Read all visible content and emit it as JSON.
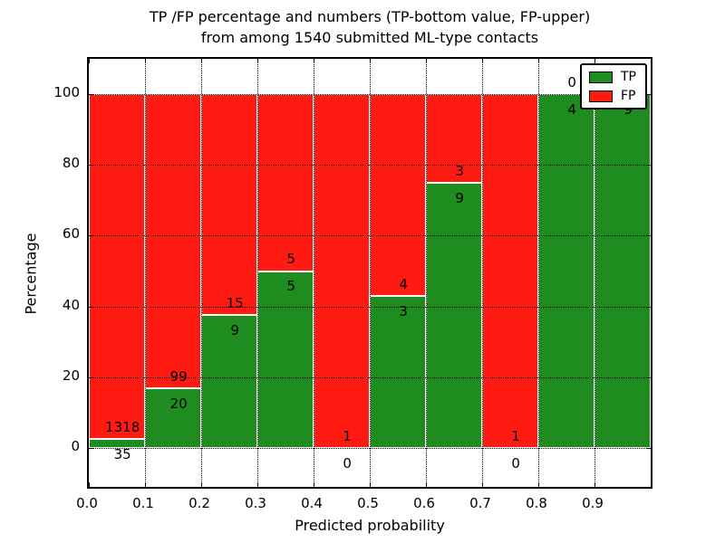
{
  "title": {
    "line1": "TP /FP percentage and numbers (TP-bottom value, FP-upper)",
    "line2": "from among 1540 submitted ML-type contacts"
  },
  "axes": {
    "xlabel": "Predicted probability",
    "ylabel": "Percentage",
    "x_tick_labels": [
      "0.0",
      "0.1",
      "0.2",
      "0.3",
      "0.4",
      "0.5",
      "0.6",
      "0.7",
      "0.8",
      "0.9"
    ],
    "y_tick_labels": [
      "0",
      "20",
      "40",
      "60",
      "80",
      "100"
    ]
  },
  "legend": {
    "items": [
      {
        "label": "TP",
        "color": "#1e8c1e"
      },
      {
        "label": "FP",
        "color": "#ff1a12"
      }
    ]
  },
  "colors": {
    "tp": "#1e8c1e",
    "fp": "#ff1a12",
    "bar_edge": "#ffffff",
    "grid": "#000000",
    "text": "#000000",
    "background": "#ffffff"
  },
  "chart_data": {
    "type": "bar",
    "stacked": true,
    "orientation": "vertical",
    "title": "TP /FP percentage and numbers (TP-bottom value, FP-upper) from among 1540 submitted ML-type contacts",
    "xlabel": "Predicted probability",
    "ylabel": "Percentage",
    "xlim": [
      0.0,
      1.0
    ],
    "ylim": [
      -11,
      110
    ],
    "x_ticks": [
      0.0,
      0.1,
      0.2,
      0.3,
      0.4,
      0.5,
      0.6,
      0.7,
      0.8,
      0.9
    ],
    "y_ticks": [
      0,
      20,
      40,
      60,
      80,
      100
    ],
    "grid": true,
    "legend_position": "upper right",
    "total_contacts": 1540,
    "bin_width": 0.1,
    "bins": [
      {
        "x0": 0.0,
        "x1": 0.1,
        "tp": 35,
        "fp": 1318,
        "tp_pct": 2.6,
        "fp_pct": 97.4,
        "tp_label": "35",
        "fp_label": "1318"
      },
      {
        "x0": 0.1,
        "x1": 0.2,
        "tp": 20,
        "fp": 99,
        "tp_pct": 16.8,
        "fp_pct": 83.2,
        "tp_label": "20",
        "fp_label": "99"
      },
      {
        "x0": 0.2,
        "x1": 0.3,
        "tp": 9,
        "fp": 15,
        "tp_pct": 37.5,
        "fp_pct": 62.5,
        "tp_label": "9",
        "fp_label": "15"
      },
      {
        "x0": 0.3,
        "x1": 0.4,
        "tp": 5,
        "fp": 5,
        "tp_pct": 50.0,
        "fp_pct": 50.0,
        "tp_label": "5",
        "fp_label": "5"
      },
      {
        "x0": 0.4,
        "x1": 0.5,
        "tp": 0,
        "fp": 1,
        "tp_pct": 0.0,
        "fp_pct": 100.0,
        "tp_label": "0",
        "fp_label": "1"
      },
      {
        "x0": 0.5,
        "x1": 0.6,
        "tp": 3,
        "fp": 4,
        "tp_pct": 42.9,
        "fp_pct": 57.1,
        "tp_label": "3",
        "fp_label": "4"
      },
      {
        "x0": 0.6,
        "x1": 0.7,
        "tp": 9,
        "fp": 3,
        "tp_pct": 75.0,
        "fp_pct": 25.0,
        "tp_label": "9",
        "fp_label": "3"
      },
      {
        "x0": 0.7,
        "x1": 0.8,
        "tp": 0,
        "fp": 1,
        "tp_pct": 0.0,
        "fp_pct": 100.0,
        "tp_label": "0",
        "fp_label": "1"
      },
      {
        "x0": 0.8,
        "x1": 0.9,
        "tp": 4,
        "fp": 0,
        "tp_pct": 100.0,
        "fp_pct": 0.0,
        "tp_label": "4",
        "fp_label": "0"
      },
      {
        "x0": 0.9,
        "x1": 1.0,
        "tp": 9,
        "fp": 0,
        "tp_pct": 100.0,
        "fp_pct": 0.0,
        "tp_label": "9",
        "fp_label": ""
      }
    ],
    "series": [
      {
        "name": "TP",
        "color": "#1e8c1e",
        "counts": [
          35,
          20,
          9,
          5,
          0,
          3,
          9,
          0,
          4,
          9
        ]
      },
      {
        "name": "FP",
        "color": "#ff1a12",
        "counts": [
          1318,
          99,
          15,
          5,
          1,
          4,
          3,
          1,
          0,
          0
        ]
      }
    ]
  }
}
